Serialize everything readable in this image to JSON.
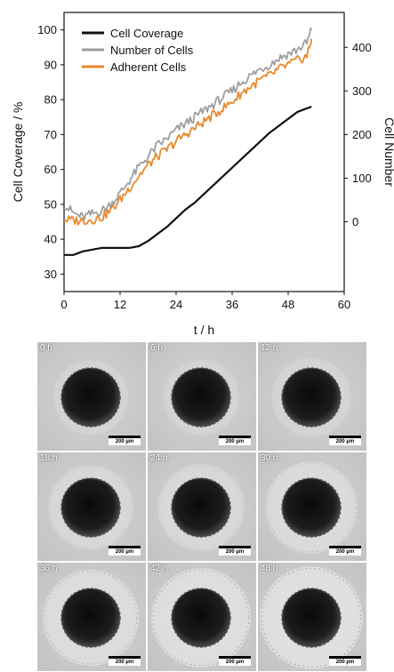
{
  "chart_data": {
    "type": "line",
    "xlabel": "t / h",
    "ylabel": "Cell Coverage / %",
    "y2label": "Cell Number",
    "xlim": [
      0,
      60
    ],
    "ylim": [
      25,
      105
    ],
    "y2lim": [
      -160,
      480
    ],
    "xticks": [
      "0",
      "12",
      "24",
      "36",
      "48",
      "60"
    ],
    "yticks": [
      "30",
      "40",
      "50",
      "60",
      "70",
      "80",
      "90",
      "100"
    ],
    "y2ticks": [
      "0",
      "100",
      "200",
      "300",
      "400"
    ],
    "legend_position": "top-left",
    "series": [
      {
        "name": "Cell Coverage",
        "axis": "left",
        "color": "#111111",
        "x": [
          0,
          2,
          4,
          6,
          8,
          10,
          12,
          14,
          16,
          18,
          20,
          22,
          24,
          26,
          28,
          30,
          32,
          34,
          36,
          38,
          40,
          42,
          44,
          46,
          48,
          50,
          52,
          53
        ],
        "y": [
          35.5,
          35.5,
          36.5,
          37,
          37.5,
          37.5,
          37.5,
          37.5,
          38,
          39.5,
          41.5,
          43.5,
          46,
          48.5,
          50.5,
          53,
          55.5,
          58,
          60.5,
          63,
          65.5,
          68,
          70.5,
          72.5,
          74.5,
          76.5,
          77.5,
          78
        ]
      },
      {
        "name": "Number of Cells",
        "axis": "right",
        "color": "#9e9e9e",
        "x": [
          0,
          2,
          4,
          6,
          8,
          10,
          12,
          14,
          16,
          18,
          20,
          22,
          24,
          26,
          28,
          30,
          32,
          34,
          36,
          38,
          40,
          42,
          44,
          46,
          48,
          50,
          52,
          53
        ],
        "y": [
          40,
          20,
          10,
          18,
          25,
          40,
          65,
          95,
          125,
          150,
          175,
          190,
          210,
          225,
          240,
          255,
          270,
          285,
          300,
          320,
          335,
          350,
          360,
          375,
          385,
          395,
          410,
          440
        ]
      },
      {
        "name": "Adherent Cells",
        "axis": "right",
        "color": "#e8892e",
        "x": [
          0,
          2,
          4,
          6,
          8,
          10,
          12,
          14,
          16,
          18,
          20,
          22,
          24,
          26,
          28,
          30,
          32,
          34,
          36,
          38,
          40,
          42,
          44,
          46,
          48,
          50,
          52,
          53
        ],
        "y": [
          5,
          3,
          3,
          5,
          10,
          25,
          50,
          78,
          105,
          130,
          150,
          165,
          185,
          200,
          215,
          230,
          245,
          260,
          275,
          295,
          310,
          325,
          335,
          350,
          360,
          370,
          380,
          420
        ]
      }
    ]
  },
  "images": [
    {
      "time": "0 h",
      "scale": "200 µm",
      "growth": 0.0
    },
    {
      "time": "6 h",
      "scale": "200 µm",
      "growth": 0.02
    },
    {
      "time": "12 h",
      "scale": "200 µm",
      "growth": 0.08
    },
    {
      "time": "18 h",
      "scale": "200 µm",
      "growth": 0.18
    },
    {
      "time": "24 h",
      "scale": "200 µm",
      "growth": 0.22
    },
    {
      "time": "30 h",
      "scale": "200 µm",
      "growth": 0.32
    },
    {
      "time": "36 h",
      "scale": "200 µm",
      "growth": 0.4
    },
    {
      "time": "42 h",
      "scale": "200 µm",
      "growth": 0.46
    },
    {
      "time": "48 h",
      "scale": "200 µm",
      "growth": 0.52
    }
  ]
}
